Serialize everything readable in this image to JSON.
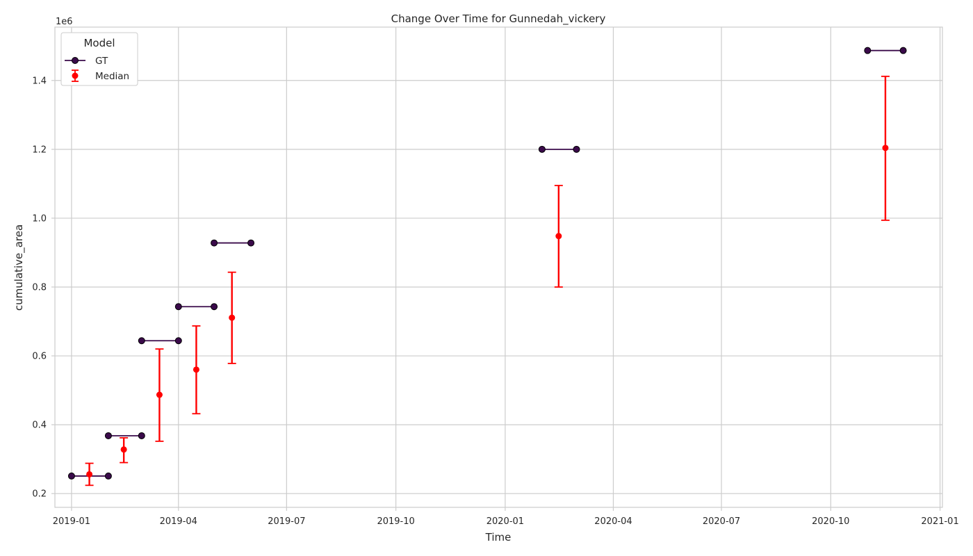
{
  "chart_data": {
    "type": "line",
    "title": "Change Over Time for Gunnedah_vickery",
    "xlabel": "Time",
    "ylabel": "cumulative_area",
    "y_scale_label": "1e6",
    "xlim": [
      "2018-12-18",
      "2021-01-03"
    ],
    "ylim": [
      0.16,
      1.555
    ],
    "grid": true,
    "legend": {
      "title": "Model",
      "position": "top-left",
      "entries": [
        "GT",
        "Median"
      ]
    },
    "x_ticks": [
      {
        "date": "2019-01-01",
        "label": "2019-01"
      },
      {
        "date": "2019-04-01",
        "label": "2019-04"
      },
      {
        "date": "2019-07-01",
        "label": "2019-07"
      },
      {
        "date": "2019-10-01",
        "label": "2019-10"
      },
      {
        "date": "2020-01-01",
        "label": "2020-01"
      },
      {
        "date": "2020-04-01",
        "label": "2020-04"
      },
      {
        "date": "2020-07-01",
        "label": "2020-07"
      },
      {
        "date": "2020-10-01",
        "label": "2020-10"
      },
      {
        "date": "2021-01-01",
        "label": "2021-01"
      }
    ],
    "y_ticks": [
      {
        "value": 0.2,
        "label": "0.2"
      },
      {
        "value": 0.4,
        "label": "0.4"
      },
      {
        "value": 0.6,
        "label": "0.6"
      },
      {
        "value": 0.8,
        "label": "0.8"
      },
      {
        "value": 1.0,
        "label": "1.0"
      },
      {
        "value": 1.2,
        "label": "1.2"
      },
      {
        "value": 1.4,
        "label": "1.4"
      }
    ],
    "series": [
      {
        "name": "GT",
        "color": "#3a0a4a",
        "segments": [
          {
            "start": "2019-01-01",
            "end": "2019-02-01",
            "value": 0.251
          },
          {
            "start": "2019-02-01",
            "end": "2019-03-01",
            "value": 0.368
          },
          {
            "start": "2019-03-01",
            "end": "2019-04-01",
            "value": 0.644
          },
          {
            "start": "2019-04-01",
            "end": "2019-05-01",
            "value": 0.743
          },
          {
            "start": "2019-05-01",
            "end": "2019-06-01",
            "value": 0.928
          },
          {
            "start": "2020-02-01",
            "end": "2020-03-01",
            "value": 1.2
          },
          {
            "start": "2020-11-01",
            "end": "2020-12-01",
            "value": 1.487
          }
        ]
      },
      {
        "name": "Median",
        "color": "#ff0000",
        "points": [
          {
            "x": "2019-01-16",
            "y": 0.256,
            "low": 0.224,
            "high": 0.288
          },
          {
            "x": "2019-02-14",
            "y": 0.328,
            "low": 0.29,
            "high": 0.362
          },
          {
            "x": "2019-03-16",
            "y": 0.487,
            "low": 0.352,
            "high": 0.62
          },
          {
            "x": "2019-04-16",
            "y": 0.56,
            "low": 0.432,
            "high": 0.687
          },
          {
            "x": "2019-05-16",
            "y": 0.711,
            "low": 0.578,
            "high": 0.843
          },
          {
            "x": "2020-02-15",
            "y": 0.948,
            "low": 0.8,
            "high": 1.095
          },
          {
            "x": "2020-11-16",
            "y": 1.204,
            "low": 0.994,
            "high": 1.412
          }
        ]
      }
    ]
  }
}
